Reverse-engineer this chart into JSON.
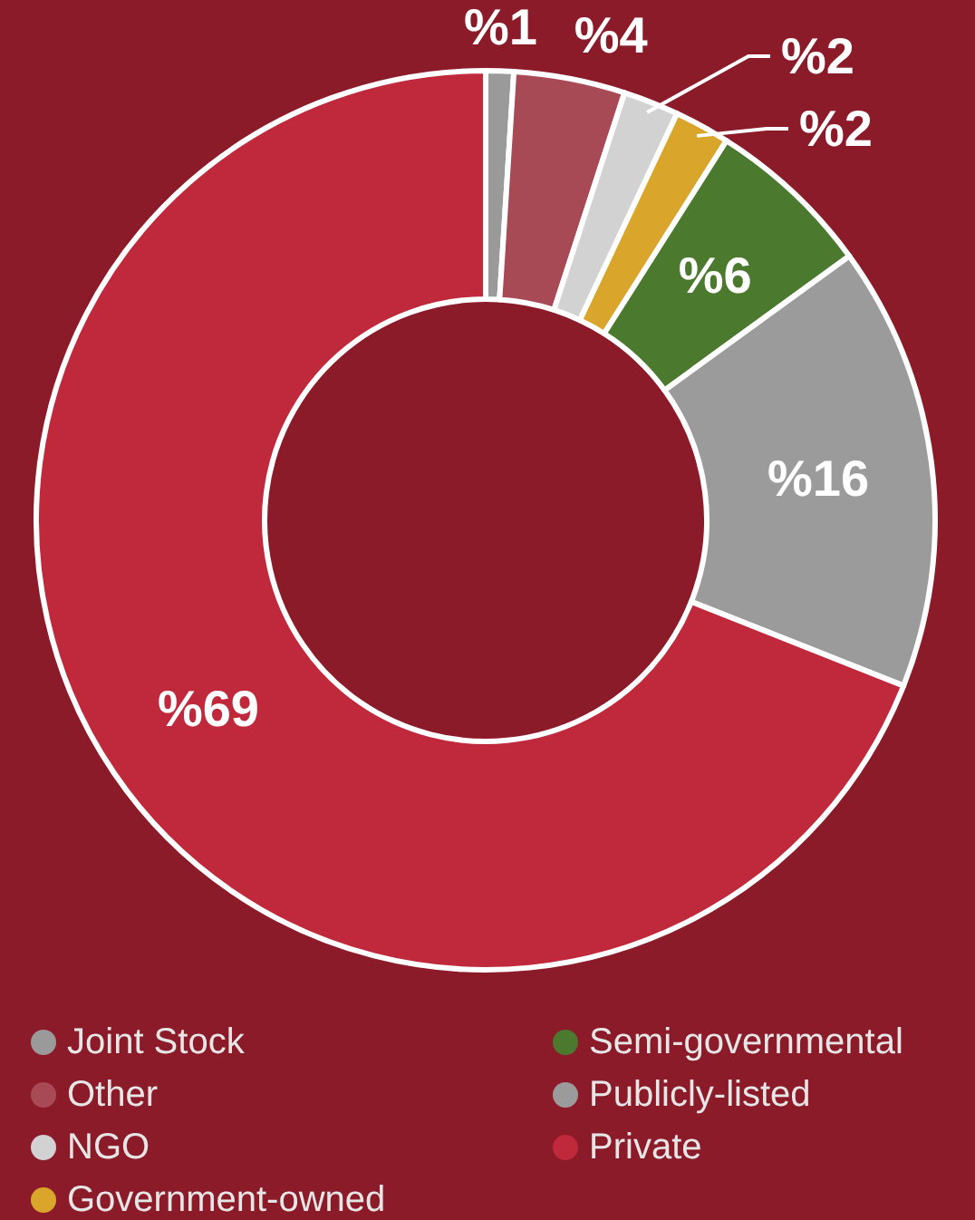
{
  "chart_data": {
    "type": "donut",
    "categories": [
      "Joint Stock",
      "Other",
      "NGO",
      "Government-owned",
      "Semi-governmental",
      "Publicly-listed",
      "Private"
    ],
    "values": [
      1,
      4,
      2,
      2,
      6,
      16,
      69
    ],
    "value_labels": [
      "%1",
      "%4",
      "%2",
      "%2",
      "%6",
      "%16",
      "%69"
    ],
    "colors": [
      "#9a9a9a",
      "#a84a55",
      "#d2d2d2",
      "#d9a62b",
      "#4b7a2f",
      "#9b9b9b",
      "#c0283b"
    ],
    "legend": "bottom"
  }
}
